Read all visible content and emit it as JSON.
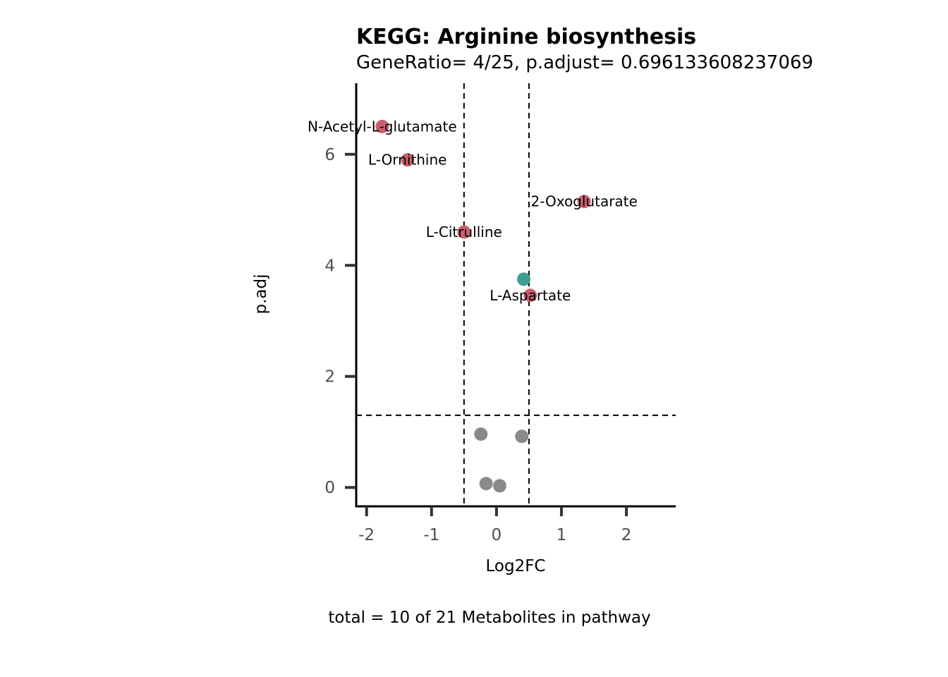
{
  "chart_data": {
    "type": "scatter",
    "title": "KEGG: Arginine biosynthesis",
    "subtitle": "GeneRatio= 4/25, p.adjust= 0.696133608237069",
    "xlabel": "Log2FC",
    "ylabel": "p.adj",
    "caption": "total = 10 of 21 Metabolites in pathway",
    "xlim": [
      -2.16,
      2.76
    ],
    "ylim": [
      -0.34,
      7.28
    ],
    "x_ticks": [
      -2,
      -1,
      0,
      1,
      2
    ],
    "x_tick_labels": [
      "-2",
      "-1",
      "0",
      "1",
      "2"
    ],
    "y_ticks": [
      0,
      2,
      4,
      6
    ],
    "y_tick_labels": [
      "0",
      "2",
      "4",
      "6"
    ],
    "grid": false,
    "thresholds": {
      "x": [
        -0.5,
        0.5
      ],
      "y": 1.3
    },
    "colors": {
      "red": "#c95f6e",
      "teal": "#3d9e91",
      "gray": "#8a8a8a"
    },
    "points": [
      {
        "label": "N-Acetyl-L-glutamate",
        "x": -1.76,
        "y": 6.5,
        "color": "red"
      },
      {
        "label": "L-Ornithine",
        "x": -1.37,
        "y": 5.9,
        "color": "red"
      },
      {
        "label": "2-Oxoglutarate",
        "x": 1.35,
        "y": 5.15,
        "color": "red"
      },
      {
        "label": "L-Citrulline",
        "x": -0.5,
        "y": 4.6,
        "color": "red"
      },
      {
        "label": "",
        "x": 0.42,
        "y": 3.75,
        "color": "teal"
      },
      {
        "label": "L-Aspartate",
        "x": 0.52,
        "y": 3.46,
        "color": "red"
      },
      {
        "label": "",
        "x": -0.24,
        "y": 0.96,
        "color": "gray"
      },
      {
        "label": "",
        "x": 0.39,
        "y": 0.92,
        "color": "gray"
      },
      {
        "label": "",
        "x": -0.16,
        "y": 0.07,
        "color": "gray"
      },
      {
        "label": "",
        "x": 0.05,
        "y": 0.03,
        "color": "gray"
      }
    ]
  }
}
